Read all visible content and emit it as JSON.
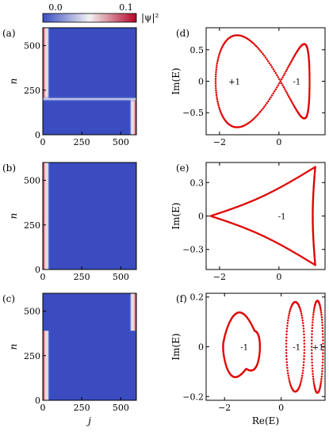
{
  "colorbar": {
    "min_label": "0.0",
    "max_label": "0.1",
    "label": "|ψ|²",
    "range": [
      0,
      0.1
    ],
    "colors": {
      "low": "#3a4cc0",
      "mid": "#f2f2f2",
      "high": "#b40426"
    }
  },
  "heatmaps": [
    {
      "panel": "(a)",
      "xlabel": "",
      "ylabel": "n",
      "xticks": [
        "0",
        "250",
        "500"
      ],
      "yticks": [
        "0",
        "250",
        "500"
      ],
      "xlim": [
        0,
        600
      ],
      "ylim": [
        0,
        600
      ],
      "features": [
        {
          "kind": "left_edge",
          "n_range": [
            200,
            600
          ]
        },
        {
          "kind": "right_edge",
          "n_range": [
            0,
            200
          ]
        },
        {
          "kind": "bulk_band",
          "n_range": [
            185,
            215
          ]
        }
      ]
    },
    {
      "panel": "(b)",
      "xlabel": "",
      "ylabel": "n",
      "xticks": [
        "0",
        "250",
        "500"
      ],
      "yticks": [
        "0",
        "250",
        "500"
      ],
      "xlim": [
        0,
        600
      ],
      "ylim": [
        0,
        600
      ],
      "features": [
        {
          "kind": "left_edge",
          "n_range": [
            0,
            600
          ]
        }
      ]
    },
    {
      "panel": "(c)",
      "xlabel": "j",
      "ylabel": "n",
      "xticks": [
        "0",
        "250",
        "500"
      ],
      "yticks": [
        "0",
        "250",
        "500"
      ],
      "xlim": [
        0,
        600
      ],
      "ylim": [
        0,
        600
      ],
      "features": [
        {
          "kind": "left_edge",
          "n_range": [
            0,
            390
          ]
        },
        {
          "kind": "right_edge",
          "n_range": [
            390,
            600
          ]
        }
      ]
    }
  ],
  "chart_data": [
    {
      "type": "scatter",
      "panel": "(d)",
      "xlabel": "",
      "ylabel": "Im(E)",
      "xlim": [
        -2.45,
        1.55
      ],
      "ylim": [
        -0.85,
        0.85
      ],
      "xticks": [
        {
          "v": -2,
          "t": "−2"
        },
        {
          "v": 0,
          "t": "0"
        }
      ],
      "yticks": [
        {
          "v": 0.5,
          "t": "0.5"
        },
        {
          "v": 0,
          "t": "0"
        },
        {
          "v": -0.5,
          "t": "−0.5"
        }
      ],
      "color": "#e00000",
      "curve": {
        "kind": "figure-eight",
        "cx": -0.35,
        "ax": 1.58,
        "bx": 0.3,
        "ay": 0.66,
        "skew": 0.15,
        "points": 260
      },
      "annotations": [
        {
          "x": -1.5,
          "y": 0,
          "text": "+1"
        },
        {
          "x": 0.6,
          "y": 0,
          "text": "-1"
        }
      ]
    },
    {
      "type": "scatter",
      "panel": "(e)",
      "xlabel": "",
      "ylabel": "Im(E)",
      "xlim": [
        -2.45,
        1.55
      ],
      "ylim": [
        -0.48,
        0.48
      ],
      "xticks": [
        {
          "v": -2,
          "t": "−2"
        },
        {
          "v": 0,
          "t": "0"
        }
      ],
      "yticks": [
        {
          "v": 0.3,
          "t": "0.3"
        },
        {
          "v": 0,
          "t": "0"
        },
        {
          "v": -0.3,
          "t": "−0.3"
        }
      ],
      "color": "#e00000",
      "curve": {
        "kind": "triangle",
        "vertices": [
          [
            -2.3,
            0
          ],
          [
            1.22,
            0.44
          ],
          [
            1.22,
            -0.44
          ]
        ],
        "points": 240
      },
      "annotations": [
        {
          "x": 0.1,
          "y": 0,
          "text": "-1"
        }
      ]
    },
    {
      "type": "scatter",
      "panel": "(f)",
      "xlabel": "Re(E)",
      "ylabel": "Im(E)",
      "xlim": [
        -2.65,
        1.55
      ],
      "ylim": [
        -0.215,
        0.215
      ],
      "xticks": [
        {
          "v": -2,
          "t": "−2"
        },
        {
          "v": 0,
          "t": "0"
        }
      ],
      "yticks": [
        {
          "v": 0.2,
          "t": "0.2"
        },
        {
          "v": 0,
          "t": "0"
        },
        {
          "v": -0.2,
          "t": "−0.2"
        }
      ],
      "color": "#e00000",
      "curve": {
        "kind": "loops",
        "loops": [
          {
            "shape": "lobed",
            "cx": -1.4,
            "points": 160
          },
          {
            "shape": "ellipse",
            "cx": 0.5,
            "rx": 0.32,
            "ry": 0.18,
            "points": 90
          },
          {
            "shape": "ellipse",
            "cx": 1.28,
            "rx": 0.2,
            "ry": 0.185,
            "points": 90
          }
        ]
      },
      "annotations": [
        {
          "x": -1.3,
          "y": 0,
          "text": "-1"
        },
        {
          "x": 0.55,
          "y": 0,
          "text": "-1"
        },
        {
          "x": 1.3,
          "y": 0,
          "text": "+1"
        }
      ]
    }
  ]
}
